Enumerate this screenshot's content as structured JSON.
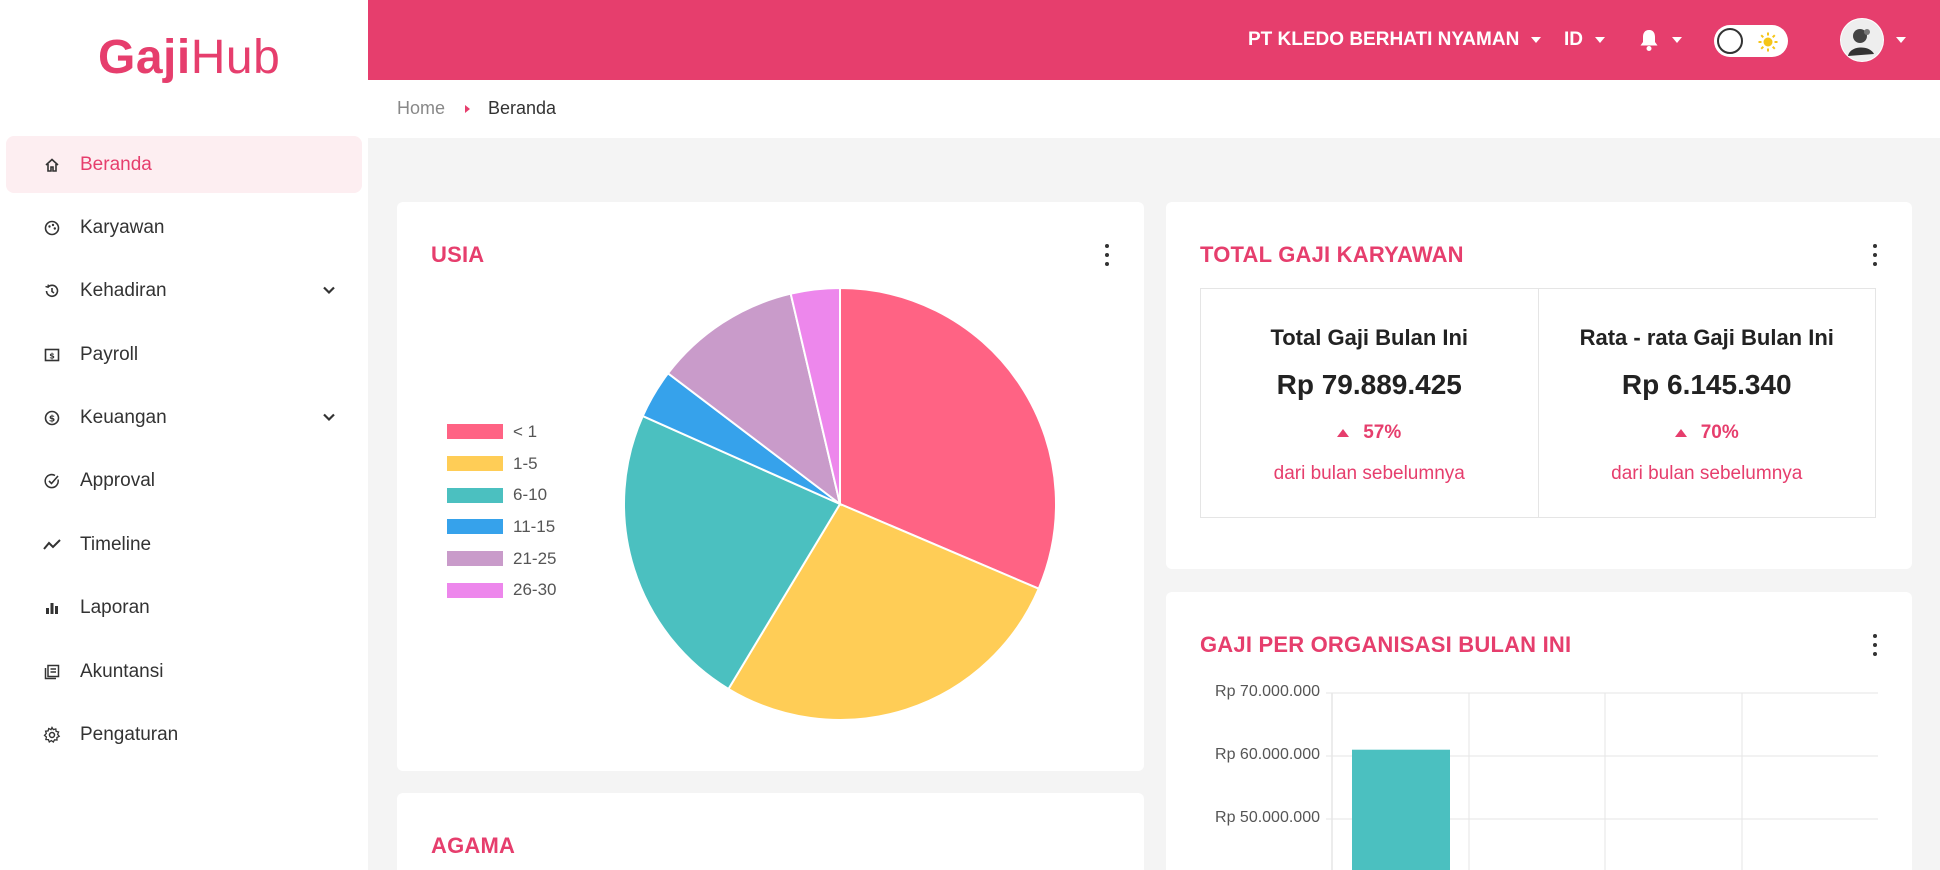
{
  "brand": {
    "gaji": "Gaji",
    "hub": "Hub",
    "color": "#e63e6d"
  },
  "sidebar": {
    "items": [
      {
        "label": "Beranda",
        "icon": "home-icon",
        "active": true
      },
      {
        "label": "Karyawan",
        "icon": "palette-icon"
      },
      {
        "label": "Kehadiran",
        "icon": "history-icon",
        "expandable": true
      },
      {
        "label": "Payroll",
        "icon": "payroll-icon"
      },
      {
        "label": "Keuangan",
        "icon": "dollar-circle-icon",
        "expandable": true
      },
      {
        "label": "Approval",
        "icon": "check-circle-icon"
      },
      {
        "label": "Timeline",
        "icon": "trend-line-icon"
      },
      {
        "label": "Laporan",
        "icon": "bar-chart-icon"
      },
      {
        "label": "Akuntansi",
        "icon": "ledger-icon"
      },
      {
        "label": "Pengaturan",
        "icon": "gear-icon"
      }
    ]
  },
  "header": {
    "company": "PT KLEDO BERHATI NYAMAN",
    "language": "ID",
    "bell_icon": "bell-icon",
    "theme_toggle_icon": "sun-icon",
    "avatar_icon": "avatar"
  },
  "breadcrumb": {
    "home": "Home",
    "current": "Beranda"
  },
  "usia": {
    "title": "USIA",
    "chart_data": {
      "type": "pie",
      "categories": [
        "< 1",
        "1-5",
        "6-10",
        "11-15",
        "21-25",
        "26-30"
      ],
      "values": [
        30,
        26,
        22,
        3.5,
        10.5,
        3.5
      ],
      "colors": [
        "#ff6384",
        "#ffcd56",
        "#4bc0c0",
        "#36a2eb",
        "#c99bca",
        "#ed87ec"
      ],
      "legend": "left"
    }
  },
  "total_gaji": {
    "title": "TOTAL GAJI KARYAWAN",
    "boxes": [
      {
        "label": "Total Gaji Bulan Ini",
        "value": "Rp 79.889.425",
        "pct": "57%",
        "note": "dari bulan sebelumnya"
      },
      {
        "label": "Rata - rata Gaji Bulan Ini",
        "value": "Rp 6.145.340",
        "pct": "70%",
        "note": "dari bulan sebelumnya"
      }
    ]
  },
  "gaji_org": {
    "title": "GAJI PER ORGANISASI BULAN INI",
    "chart_data": {
      "type": "bar",
      "values": [
        61000000
      ],
      "y_ticks": [
        "Rp 70.000.000",
        "Rp 60.000.000",
        "Rp 50.000.000"
      ],
      "ylim": [
        40000000,
        70000000
      ],
      "bar_color": "#4bc0c0",
      "grid": true
    }
  },
  "agama": {
    "title": "AGAMA"
  }
}
